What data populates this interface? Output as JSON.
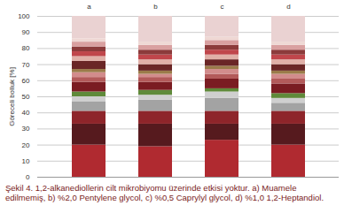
{
  "chart_data": {
    "type": "bar",
    "stacked": true,
    "caption": "Şekil 4. 1,2-alkanediollerin cilt mikrobiyomu üzerinde etkisi yoktur. a) Muamele edilmemiş, b) %2,0 Pentylene glycol, c) %0,5 Caprylyl glycol, d) %1,0 1,2-Heptandiol.",
    "y_label": "Göreceli bolluk [%]",
    "categories": [
      "a",
      "b",
      "c",
      "d"
    ],
    "ylim": [
      0,
      100
    ],
    "yticks": [
      0,
      10,
      20,
      30,
      40,
      50,
      60,
      70,
      80,
      90,
      100
    ],
    "grid": true,
    "series": [
      {
        "color": "#b02a30",
        "values": [
          20,
          19,
          23,
          20
        ]
      },
      {
        "color": "#561a1e",
        "values": [
          13,
          14,
          10,
          13
        ]
      },
      {
        "color": "#8e252a",
        "values": [
          8,
          8,
          8,
          8
        ]
      },
      {
        "color": "#a3a3a3",
        "values": [
          6,
          7,
          8,
          5
        ]
      },
      {
        "color": "#cfcfcf",
        "values": [
          3,
          3,
          4,
          3
        ]
      },
      {
        "color": "#5f8a3a",
        "values": [
          3,
          3,
          2,
          3
        ]
      },
      {
        "color": "#7a1c22",
        "values": [
          6,
          5,
          6,
          6
        ]
      },
      {
        "color": "#b35a5a",
        "values": [
          3,
          3,
          3,
          3
        ]
      },
      {
        "color": "#d28c8c",
        "values": [
          3,
          2,
          3,
          3
        ]
      },
      {
        "color": "#9b7b4a",
        "values": [
          2,
          2,
          2,
          2
        ]
      },
      {
        "color": "#6a2626",
        "values": [
          5,
          4,
          4,
          4
        ]
      },
      {
        "color": "#e0b0a8",
        "values": [
          3,
          3,
          3,
          3
        ]
      },
      {
        "color": "#c0464b",
        "values": [
          3,
          3,
          3,
          3
        ]
      },
      {
        "color": "#8c3b3b",
        "values": [
          3,
          3,
          3,
          3
        ]
      },
      {
        "color": "#d9a0a0",
        "values": [
          3,
          3,
          3,
          3
        ]
      },
      {
        "color": "#efd8d4",
        "values": [
          2,
          2,
          2,
          2
        ]
      },
      {
        "color": "#ead2d2",
        "values": [
          14,
          16,
          13,
          16
        ]
      }
    ]
  }
}
